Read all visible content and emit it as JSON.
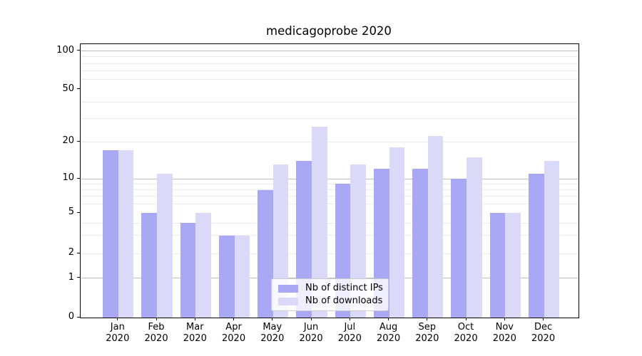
{
  "chart_data": {
    "type": "bar",
    "title": "medicagoprobe 2020",
    "categories": [
      "Jan",
      "Feb",
      "Mar",
      "Apr",
      "May",
      "Jun",
      "Jul",
      "Aug",
      "Sep",
      "Oct",
      "Nov",
      "Dec"
    ],
    "year_label": "2020",
    "series": [
      {
        "name": "Nb of distinct IPs",
        "color": "#a8a8f5",
        "values": [
          17,
          5,
          4,
          3,
          8,
          14,
          9,
          12,
          12,
          10,
          5,
          11
        ]
      },
      {
        "name": "Nb of downloads",
        "color": "#dadaf8",
        "values": [
          17,
          11,
          5,
          3,
          13,
          26,
          13,
          18,
          22,
          15,
          5,
          14
        ]
      }
    ],
    "xlabel": "",
    "ylabel": "",
    "y_axis": {
      "scale": "symlog",
      "tick_values": [
        0,
        1,
        2,
        5,
        10,
        20,
        50,
        100
      ],
      "tick_labels": [
        "0",
        "1",
        "2",
        "5",
        "10",
        "20",
        "50",
        "100"
      ],
      "major_gridline_values": [
        1,
        10,
        100
      ],
      "minor_gridline_values": [
        2,
        3,
        4,
        6,
        7,
        8,
        9,
        20,
        30,
        40,
        60,
        70,
        80,
        90
      ],
      "range_top_value": 115
    },
    "grid": true,
    "legend_position": "lower-center",
    "colors": {
      "major_grid": "#bdbdbd",
      "minor_grid": "#ececec",
      "axis": "#000000",
      "background": "#ffffff"
    }
  }
}
